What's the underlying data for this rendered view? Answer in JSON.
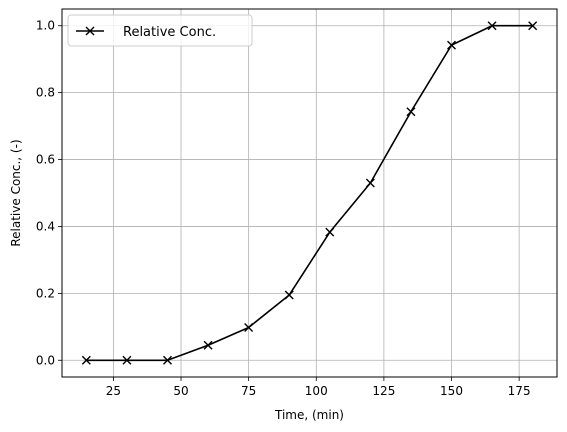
{
  "chart_data": {
    "type": "line",
    "title": "",
    "xlabel": "Time, (min)",
    "ylabel": "Relative Conc., (-)",
    "xlim": [
      6,
      189
    ],
    "ylim": [
      -0.05,
      1.05
    ],
    "xticks": [
      25,
      50,
      75,
      100,
      125,
      150,
      175
    ],
    "yticks": [
      0.0,
      0.2,
      0.4,
      0.6,
      0.8,
      1.0
    ],
    "grid": true,
    "legend_position": "upper-left",
    "series": [
      {
        "name": "Relative Conc.",
        "color": "#000000",
        "marker": "x",
        "x": [
          15,
          30,
          45,
          60,
          75,
          90,
          105,
          120,
          135,
          150,
          165,
          180
        ],
        "y": [
          0.0,
          0.0,
          0.0,
          0.045,
          0.098,
          0.195,
          0.383,
          0.53,
          0.743,
          0.942,
          1.0,
          1.0
        ]
      }
    ]
  }
}
